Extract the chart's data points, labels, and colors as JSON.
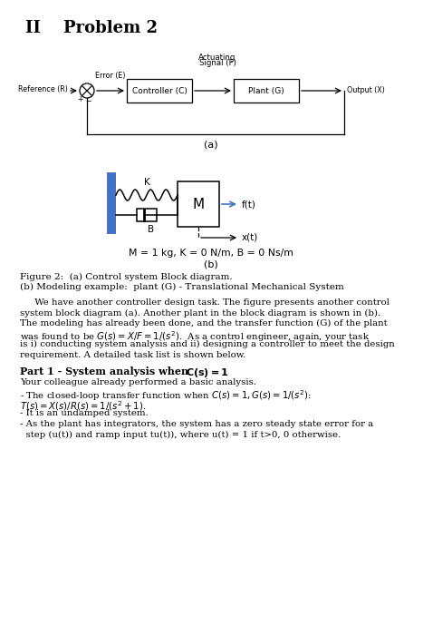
{
  "bg_color": "#ffffff",
  "title": "II    Problem 2",
  "label_a": "(a)",
  "label_b": "(b)",
  "mkg_text": "M = 1 kg, K = 0 N/m, B = 0 Ns/m",
  "fig_caption_1": "Figure 2:  (a) Control system Block diagram.",
  "fig_caption_2": "(b) Modeling example:  plant (G) - Translational Mechanical System",
  "body_lines": [
    "     We have another controller design task. The figure presents another control",
    "system block diagram (a). Another plant in the block diagram is shown in (b).",
    "The modeling has already been done, and the transfer function (G) of the plant",
    "was found to be $G(s) = X/F = 1/(s^2)$.  As a control engineer, again, your task",
    "is i) conducting system analysis and ii) designing a controller to meet the design",
    "requirement. A detailed task list is shown below."
  ],
  "part1_title_plain": "Part 1 - System analysis when ",
  "part1_title_math": "C(s)",
  "part1_title_end": " = 1",
  "part1_lines": [
    "Your colleague already performed a basic analysis.",
    "- The closed-loop transfer function when $C(s) = 1, G(s) = 1/(s^2)$:",
    "$T(s) = X(s)/R(s) = 1/(s^2 + 1)$.",
    "- It is an undamped system.",
    "- As the plant has integrators, the system has a zero steady state error for a",
    "  step (u(t)) and ramp input tu(t)), where u(t) = 1 if t>0, 0 otherwise."
  ],
  "blue_color": "#4472C4",
  "wall_color": "#4472C4"
}
